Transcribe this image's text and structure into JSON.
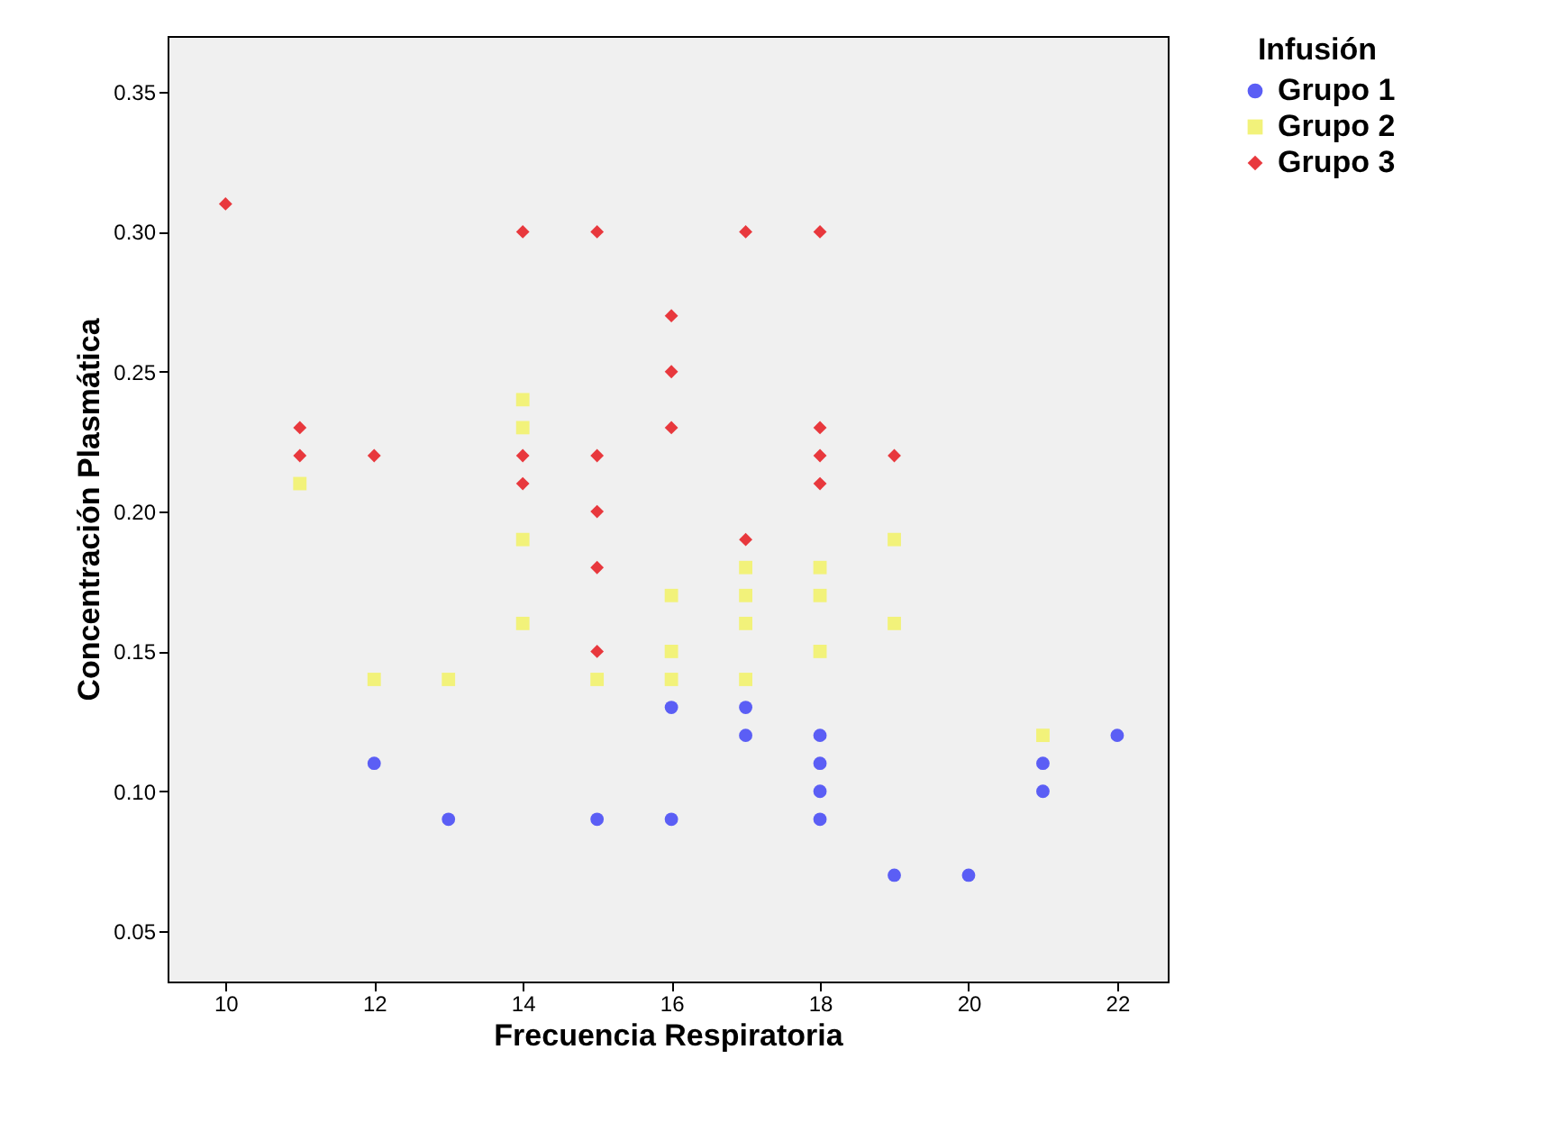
{
  "chart_data": {
    "type": "scatter",
    "xlabel": "Frecuencia Respiratoria",
    "ylabel": "Concentración Plasmática",
    "legend_title": "Infusión",
    "legend": "right",
    "grid": false,
    "xlim": [
      9.22,
      22.68
    ],
    "xticks": [
      10,
      12,
      14,
      16,
      18,
      20,
      22
    ],
    "ylim": [
      0.032,
      0.37
    ],
    "yticks": [
      0.05,
      {
        "value": 0.1,
        "label": "0.10"
      },
      0.15,
      {
        "value": 0.2,
        "label": "0.20"
      },
      0.25,
      {
        "value": 0.3,
        "label": "0.30"
      },
      0.35
    ],
    "series": [
      {
        "name": "Grupo 1",
        "color": "#5b5ef5",
        "marker": "circle",
        "x": [
          12,
          13,
          15,
          16,
          16,
          17,
          17,
          18,
          18,
          18,
          18,
          19,
          20,
          21,
          21,
          22
        ],
        "values": [
          0.11,
          0.09,
          0.09,
          0.13,
          0.09,
          0.13,
          0.12,
          0.12,
          0.11,
          0.1,
          0.09,
          0.07,
          0.07,
          0.11,
          0.1,
          0.12
        ]
      },
      {
        "name": "Grupo 2",
        "color": "#f2f27a",
        "marker": "square",
        "x": [
          11,
          12,
          13,
          14,
          14,
          14,
          14,
          15,
          16,
          16,
          16,
          17,
          17,
          17,
          17,
          18,
          18,
          18,
          19,
          19,
          21
        ],
        "values": [
          0.21,
          0.14,
          0.14,
          0.24,
          0.23,
          0.19,
          0.16,
          0.14,
          0.17,
          0.15,
          0.14,
          0.18,
          0.17,
          0.16,
          0.14,
          0.18,
          0.17,
          0.15,
          0.19,
          0.16,
          0.12
        ]
      },
      {
        "name": "Grupo 3",
        "color": "#e8383d",
        "marker": "diamond",
        "x": [
          10,
          11,
          11,
          12,
          14,
          14,
          14,
          15,
          15,
          15,
          15,
          15,
          16,
          16,
          16,
          17,
          17,
          18,
          18,
          18,
          18,
          19
        ],
        "values": [
          0.31,
          0.23,
          0.22,
          0.22,
          0.3,
          0.22,
          0.21,
          0.3,
          0.22,
          0.2,
          0.18,
          0.15,
          0.27,
          0.25,
          0.23,
          0.3,
          0.19,
          0.3,
          0.23,
          0.22,
          0.21,
          0.22
        ]
      }
    ]
  }
}
